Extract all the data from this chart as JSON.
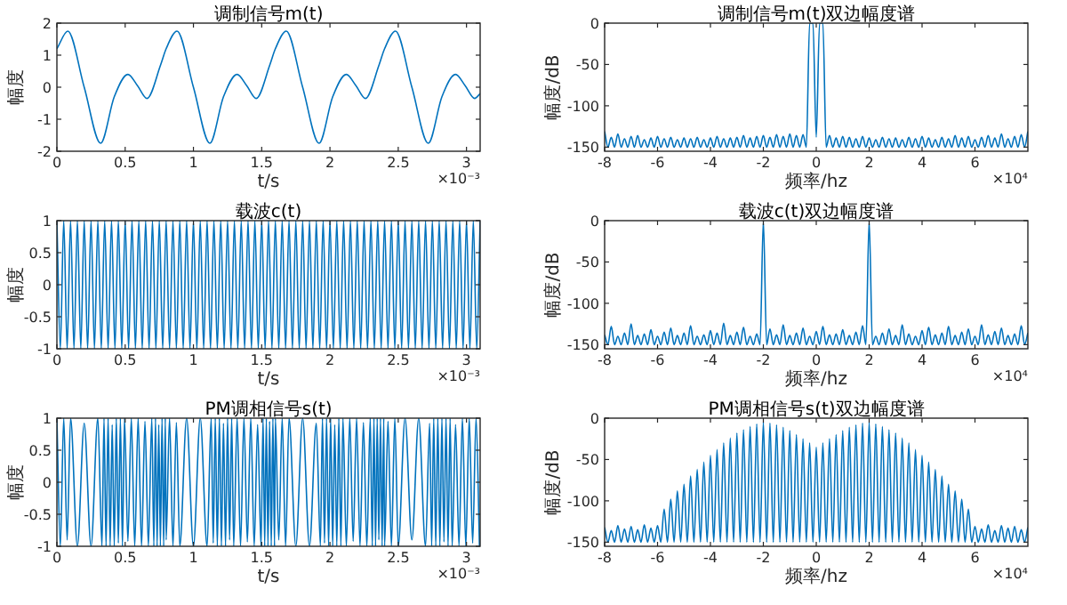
{
  "chart_data": [
    {
      "type": "line",
      "title": "调制信号m(t)",
      "xlabel": "t/s",
      "ylabel": "幅度",
      "annotations": [
        "×10⁻³"
      ],
      "xlim": [
        0,
        3.1
      ],
      "ylim": [
        -2,
        2
      ],
      "xticks": [
        0,
        0.5,
        1,
        1.5,
        2,
        2.5,
        3
      ],
      "yticks": [
        -2,
        -1,
        0,
        1,
        2
      ],
      "series": [
        {
          "color": "#0072bd",
          "x": [
            0,
            0.08,
            0.2,
            0.32,
            0.42,
            0.52,
            0.59,
            0.66,
            0.76,
            0.8,
            0.88,
            1.0,
            1.12,
            1.22,
            1.32,
            1.39,
            1.46,
            1.56,
            1.6,
            1.68,
            1.8,
            1.92,
            2.02,
            2.12,
            2.19,
            2.26,
            2.36,
            2.4,
            2.48,
            2.6,
            2.72,
            2.82,
            2.92,
            2.99,
            3.06,
            3.1
          ],
          "values": [
            1.2,
            1.75,
            0,
            -1.75,
            -0.3,
            0.4,
            0.05,
            -0.35,
            0.7,
            1.2,
            1.75,
            0,
            -1.75,
            -0.3,
            0.4,
            0.05,
            -0.35,
            0.7,
            1.2,
            1.75,
            0,
            -1.75,
            -0.3,
            0.4,
            0.05,
            -0.35,
            0.7,
            1.2,
            1.75,
            0,
            -1.75,
            -0.3,
            0.4,
            0.05,
            -0.35,
            -0.2
          ]
        }
      ]
    },
    {
      "type": "line",
      "title": "调制信号m(t)双边幅度谱",
      "xlabel": "频率/hz",
      "ylabel": "幅度/dB",
      "annotations": [
        "×10⁴"
      ],
      "xlim": [
        -8,
        8
      ],
      "ylim": [
        -155,
        0
      ],
      "xticks": [
        -8,
        -6,
        -4,
        -2,
        0,
        2,
        4,
        6
      ],
      "yticks": [
        -150,
        -100,
        -50,
        0
      ],
      "x": [
        -8,
        -7.875,
        -7.75,
        -7.625,
        -7.5,
        -7.375,
        -7.25,
        -7.125,
        -7,
        -6.875,
        -6.75,
        -6.625,
        -6.5,
        -6.375,
        -6.25,
        -6.125,
        -6,
        -5.875,
        -5.75,
        -5.625,
        -5.5,
        -5.375,
        -5.25,
        -5.125,
        -5,
        -4.875,
        -4.75,
        -4.625,
        -4.5,
        -4.375,
        -4.25,
        -4.125,
        -4,
        -3.875,
        -3.75,
        -3.625,
        -3.5,
        -3.375,
        -3.25,
        -3.125,
        -3,
        -2.875,
        -2.75,
        -2.625,
        -2.5,
        -2.375,
        -2.25,
        -2.125,
        -2,
        -1.875,
        -1.75,
        -1.625,
        -1.5,
        -1.375,
        -1.25,
        -1.125,
        -1,
        -0.875,
        -0.75,
        -0.625,
        -0.5,
        -0.375,
        -0.25,
        -0.125,
        0,
        0.125,
        0.25,
        0.375,
        0.5,
        0.625,
        0.75,
        0.875,
        1,
        1.125,
        1.25,
        1.375,
        1.5,
        1.625,
        1.75,
        1.875,
        2,
        2.125,
        2.25,
        2.375,
        2.5,
        2.625,
        2.75,
        2.875,
        3,
        3.125,
        3.25,
        3.375,
        3.5,
        3.625,
        3.75,
        3.875,
        4,
        4.125,
        4.25,
        4.375,
        4.5,
        4.625,
        4.75,
        4.875,
        5,
        5.125,
        5.25,
        5.375,
        5.5,
        5.625,
        5.75,
        5.875,
        6,
        6.125,
        6.25,
        6.375,
        6.5,
        6.625,
        6.75,
        6.875,
        7,
        7.125,
        7.25,
        7.375,
        7.5,
        7.625,
        7.75,
        7.875,
        8
      ],
      "series": [
        {
          "color": "#0072bd",
          "values": [
            -131,
            -150,
            -138,
            -150,
            -134,
            -150,
            -140,
            -150,
            -137,
            -150,
            -136,
            -150,
            -141,
            -150,
            -139,
            -150,
            -137,
            -150,
            -140,
            -150,
            -138,
            -150,
            -141,
            -150,
            -139,
            -150,
            -140,
            -150,
            -138,
            -150,
            -141,
            -150,
            -139,
            -150,
            -137,
            -150,
            -140,
            -150,
            -139,
            -150,
            -138,
            -150,
            -136,
            -150,
            -139,
            -150,
            -137,
            -150,
            -136,
            -150,
            -138,
            -150,
            -135,
            -150,
            -137,
            -150,
            -134,
            -150,
            -136,
            -150,
            -135,
            -150,
            0,
            0,
            -138,
            0,
            0,
            -150,
            -136,
            -150,
            -139,
            -150,
            -137,
            -150,
            -138,
            -150,
            -140,
            -150,
            -137,
            -150,
            -139,
            -150,
            -141,
            -150,
            -138,
            -150,
            -140,
            -150,
            -139,
            -150,
            -141,
            -150,
            -138,
            -150,
            -140,
            -150,
            -137,
            -150,
            -139,
            -150,
            -141,
            -150,
            -138,
            -150,
            -140,
            -150,
            -136,
            -150,
            -139,
            -150,
            -137,
            -150,
            -141,
            -150,
            -138,
            -150,
            -136,
            -150,
            -139,
            -150,
            -134,
            -150,
            -140,
            -150,
            -137,
            -150,
            -135,
            -150,
            -131
          ]
        }
      ]
    },
    {
      "type": "line",
      "title": "载波c(t)",
      "xlabel": "t/s",
      "ylabel": "幅度",
      "annotations": [
        "×10⁻³"
      ],
      "xlim": [
        0,
        3.1
      ],
      "ylim": [
        -1,
        1
      ],
      "xticks": [
        0,
        0.5,
        1,
        1.5,
        2,
        2.5,
        3
      ],
      "yticks": [
        -1,
        -0.5,
        0,
        0.5,
        1
      ],
      "series": [
        {
          "color": "#0072bd",
          "x": [
            0,
            0.025,
            0.05,
            0.075,
            0.1,
            0.125,
            0.15,
            0.175,
            0.2,
            0.225,
            0.25,
            0.275,
            0.3,
            0.325,
            0.35,
            0.375,
            0.4,
            0.425,
            0.45,
            0.475,
            0.5,
            0.525,
            0.55,
            0.575,
            0.6,
            0.625,
            0.65,
            0.675,
            0.7,
            0.725,
            0.75,
            0.775,
            0.8,
            0.825,
            0.85,
            0.875,
            0.9,
            0.925,
            0.95,
            0.975,
            1,
            1.025,
            1.05,
            1.075,
            1.1,
            1.125,
            1.15,
            1.175,
            1.2,
            1.225,
            1.25,
            1.275,
            1.3,
            1.325,
            1.35,
            1.375,
            1.4,
            1.425,
            1.45,
            1.475,
            1.5,
            1.525,
            1.55,
            1.575,
            1.6,
            1.625,
            1.65,
            1.675,
            1.7,
            1.725,
            1.75,
            1.775,
            1.8,
            1.825,
            1.85,
            1.875,
            1.9,
            1.925,
            1.95,
            1.975,
            2,
            2.025,
            2.05,
            2.075,
            2.1,
            2.125,
            2.15,
            2.175,
            2.2,
            2.225,
            2.25,
            2.275,
            2.3,
            2.325,
            2.35,
            2.375,
            2.4,
            2.425,
            2.45,
            2.475,
            2.5,
            2.525,
            2.55,
            2.575,
            2.6,
            2.625,
            2.65,
            2.675,
            2.7,
            2.725,
            2.75,
            2.775,
            2.8,
            2.825,
            2.85,
            2.875,
            2.9,
            2.925,
            2.95,
            2.975,
            3,
            3.025,
            3.05,
            3.075,
            3.1
          ],
          "values": [
            1,
            -1,
            1,
            -1,
            1,
            -1,
            1,
            -1,
            1,
            -1,
            1,
            -1,
            1,
            -1,
            1,
            -1,
            1,
            -1,
            1,
            -1,
            1,
            -1,
            1,
            -1,
            1,
            -1,
            1,
            -1,
            1,
            -1,
            1,
            -1,
            1,
            -1,
            1,
            -1,
            1,
            -1,
            1,
            -1,
            1,
            -1,
            1,
            -1,
            1,
            -1,
            1,
            -1,
            1,
            -1,
            1,
            -1,
            1,
            -1,
            1,
            -1,
            1,
            -1,
            1,
            -1,
            1,
            -1,
            1,
            -1,
            1,
            -1,
            1,
            -1,
            1,
            -1,
            1,
            -1,
            1,
            -1,
            1,
            -1,
            1,
            -1,
            1,
            -1,
            1,
            -1,
            1,
            -1,
            1,
            -1,
            1,
            -1,
            1,
            -1,
            1,
            -1,
            1,
            -1,
            1,
            -1,
            1,
            -1,
            1,
            -1,
            1,
            -1,
            1,
            -1,
            1,
            -1,
            1,
            -1,
            1,
            -1,
            1,
            -1,
            1,
            -1,
            1,
            -1,
            1,
            -1,
            1,
            -1,
            1,
            -1,
            1,
            -1,
            1
          ]
        }
      ]
    },
    {
      "type": "line",
      "title": "载波c(t)双边幅度谱",
      "xlabel": "频率/hz",
      "ylabel": "幅度/dB",
      "annotations": [
        "×10⁴"
      ],
      "xlim": [
        -8,
        8
      ],
      "ylim": [
        -155,
        0
      ],
      "xticks": [
        -8,
        -6,
        -4,
        -2,
        0,
        2,
        4,
        6
      ],
      "yticks": [
        -150,
        -100,
        -50,
        0
      ],
      "x": [
        -8,
        -7.875,
        -7.75,
        -7.625,
        -7.5,
        -7.375,
        -7.25,
        -7.125,
        -7,
        -6.875,
        -6.75,
        -6.625,
        -6.5,
        -6.375,
        -6.25,
        -6.125,
        -6,
        -5.875,
        -5.75,
        -5.625,
        -5.5,
        -5.375,
        -5.25,
        -5.125,
        -5,
        -4.875,
        -4.75,
        -4.625,
        -4.5,
        -4.375,
        -4.25,
        -4.125,
        -4,
        -3.875,
        -3.75,
        -3.625,
        -3.5,
        -3.375,
        -3.25,
        -3.125,
        -3,
        -2.875,
        -2.75,
        -2.625,
        -2.5,
        -2.375,
        -2.25,
        -2.125,
        -2,
        -1.875,
        -1.75,
        -1.625,
        -1.5,
        -1.375,
        -1.25,
        -1.125,
        -1,
        -0.875,
        -0.75,
        -0.625,
        -0.5,
        -0.375,
        -0.25,
        -0.125,
        0,
        0.125,
        0.25,
        0.375,
        0.5,
        0.625,
        0.75,
        0.875,
        1,
        1.125,
        1.25,
        1.375,
        1.5,
        1.625,
        1.75,
        1.875,
        2,
        2.125,
        2.25,
        2.375,
        2.5,
        2.625,
        2.75,
        2.875,
        3,
        3.125,
        3.25,
        3.375,
        3.5,
        3.625,
        3.75,
        3.875,
        4,
        4.125,
        4.25,
        4.375,
        4.5,
        4.625,
        4.75,
        4.875,
        5,
        5.125,
        5.25,
        5.375,
        5.5,
        5.625,
        5.75,
        5.875,
        6,
        6.125,
        6.25,
        6.375,
        6.5,
        6.625,
        6.75,
        6.875,
        7,
        7.125,
        7.25,
        7.375,
        7.5,
        7.625,
        7.75,
        7.875,
        8
      ],
      "series": [
        {
          "color": "#0072bd",
          "values": [
            -138,
            -150,
            -128,
            -150,
            -140,
            -150,
            -136,
            -150,
            -125,
            -150,
            -139,
            -150,
            -137,
            -150,
            -132,
            -150,
            -140,
            -150,
            -135,
            -150,
            -130,
            -150,
            -139,
            -150,
            -136,
            -150,
            -127,
            -150,
            -140,
            -150,
            -138,
            -150,
            -133,
            -150,
            -136,
            -150,
            -124,
            -150,
            -139,
            -150,
            -135,
            -150,
            -129,
            -150,
            -140,
            -150,
            -137,
            -150,
            0,
            -150,
            -131,
            -150,
            -138,
            -150,
            -126,
            -150,
            -139,
            -150,
            -136,
            -150,
            -130,
            -150,
            -140,
            -150,
            -134,
            -150,
            -128,
            -150,
            -138,
            -150,
            -137,
            -150,
            -132,
            -150,
            -139,
            -150,
            -135,
            -150,
            -127,
            -150,
            0,
            -150,
            -140,
            -150,
            -136,
            -150,
            -131,
            -150,
            -139,
            -150,
            -126,
            -150,
            -137,
            -150,
            -140,
            -150,
            -133,
            -150,
            -129,
            -150,
            -138,
            -150,
            -136,
            -150,
            -128,
            -150,
            -139,
            -150,
            -135,
            -150,
            -131,
            -150,
            -140,
            -150,
            -126,
            -150,
            -138,
            -150,
            -134,
            -150,
            -130,
            -150,
            -139,
            -150,
            -137,
            -150,
            -127,
            -150,
            -136
          ]
        }
      ]
    },
    {
      "type": "line",
      "title": "PM调相信号s(t)",
      "xlabel": "t/s",
      "ylabel": "幅度",
      "annotations": [
        "×10⁻³"
      ],
      "xlim": [
        0,
        3.1
      ],
      "ylim": [
        -1,
        1
      ],
      "xticks": [
        0,
        0.5,
        1,
        1.5,
        2,
        2.5,
        3
      ],
      "yticks": [
        -1,
        -0.5,
        0,
        0.5,
        1
      ],
      "series": [
        {
          "color": "#0072bd",
          "x": [
            0,
            0.025,
            0.05,
            0.075,
            0.1,
            0.15,
            0.2,
            0.25,
            0.3,
            0.33,
            0.345,
            0.36,
            0.375,
            0.39,
            0.405,
            0.42,
            0.435,
            0.45,
            0.465,
            0.48,
            0.495,
            0.52,
            0.545,
            0.57,
            0.595,
            0.62,
            0.645,
            0.67,
            0.695,
            0.71,
            0.722,
            0.734,
            0.746,
            0.758,
            0.77,
            0.782,
            0.794,
            0.8,
            0.825,
            0.85,
            0.875,
            0.9,
            0.95,
            1.0,
            1.05,
            1.1,
            1.13,
            1.145,
            1.16,
            1.175,
            1.19,
            1.205,
            1.22,
            1.235,
            1.25,
            1.265,
            1.28,
            1.295,
            1.32,
            1.345,
            1.37,
            1.395,
            1.42,
            1.445,
            1.47,
            1.495,
            1.51,
            1.522,
            1.534,
            1.546,
            1.558,
            1.57,
            1.582,
            1.594,
            1.6,
            1.625,
            1.65,
            1.675,
            1.7,
            1.75,
            1.8,
            1.85,
            1.9,
            1.93,
            1.945,
            1.96,
            1.975,
            1.99,
            2.005,
            2.02,
            2.035,
            2.05,
            2.065,
            2.08,
            2.095,
            2.12,
            2.145,
            2.17,
            2.195,
            2.22,
            2.245,
            2.27,
            2.295,
            2.31,
            2.322,
            2.334,
            2.346,
            2.358,
            2.37,
            2.382,
            2.394,
            2.4,
            2.425,
            2.45,
            2.475,
            2.5,
            2.55,
            2.6,
            2.65,
            2.7,
            2.73,
            2.745,
            2.76,
            2.775,
            2.79,
            2.805,
            2.82,
            2.835,
            2.85,
            2.865,
            2.88,
            2.895,
            2.92,
            2.945,
            2.97,
            2.995,
            3.02,
            3.045,
            3.07,
            3.095
          ],
          "values": [
            1,
            -1,
            1,
            -0.9,
            1,
            -1,
            0.92,
            -1,
            1,
            -1,
            1,
            -1,
            1,
            -1,
            0.9,
            -1,
            1,
            -0.95,
            1,
            -1,
            1,
            -0.92,
            1,
            -1,
            1,
            -1,
            0.95,
            -1,
            1,
            -1,
            1,
            -1,
            0.9,
            -1,
            1,
            -1,
            1,
            -0.9,
            1,
            -1,
            0.93,
            -1,
            1,
            -1,
            1,
            -1,
            1,
            -0.95,
            1,
            -1,
            1,
            -1,
            0.92,
            -1,
            1,
            -0.9,
            1,
            -1,
            1,
            -1,
            1,
            -0.93,
            1,
            -1,
            0.9,
            -1,
            1,
            -1,
            1,
            -1,
            0.95,
            -1,
            1,
            -1,
            1,
            -0.9,
            1,
            -1,
            1,
            -1,
            1,
            -1,
            0.92,
            -1,
            1,
            -0.95,
            1,
            -1,
            1,
            -1,
            0.9,
            -1,
            1,
            -1,
            1,
            -1,
            1,
            -0.92,
            1,
            -1,
            0.93,
            -1,
            1,
            -1,
            1,
            -1,
            1,
            -0.9,
            1,
            -1,
            1,
            -1,
            0.95,
            -1,
            1,
            -1,
            1,
            -0.9,
            1,
            -1,
            0.92,
            -1,
            1,
            -1,
            1,
            -1,
            1,
            -0.93,
            1,
            -1,
            1,
            -1,
            0.9,
            -1,
            1,
            -1,
            1,
            -0.95,
            1,
            -1
          ]
        }
      ]
    },
    {
      "type": "line",
      "title": "PM调相信号s(t)双边幅度谱",
      "xlabel": "频率/hz",
      "ylabel": "幅度/dB",
      "annotations": [
        "×10⁴"
      ],
      "xlim": [
        -8,
        8
      ],
      "ylim": [
        -155,
        0
      ],
      "xticks": [
        -8,
        -6,
        -4,
        -2,
        0,
        2,
        4,
        6
      ],
      "yticks": [
        -150,
        -100,
        -50,
        0
      ],
      "x": [
        -8,
        -7.875,
        -7.75,
        -7.625,
        -7.5,
        -7.375,
        -7.25,
        -7.125,
        -7,
        -6.875,
        -6.75,
        -6.625,
        -6.5,
        -6.375,
        -6.25,
        -6.125,
        -6,
        -5.875,
        -5.75,
        -5.625,
        -5.5,
        -5.375,
        -5.25,
        -5.125,
        -5,
        -4.875,
        -4.75,
        -4.625,
        -4.5,
        -4.375,
        -4.25,
        -4.125,
        -4,
        -3.875,
        -3.75,
        -3.625,
        -3.5,
        -3.375,
        -3.25,
        -3.125,
        -3,
        -2.875,
        -2.75,
        -2.625,
        -2.5,
        -2.375,
        -2.25,
        -2.125,
        -2,
        -1.875,
        -1.75,
        -1.625,
        -1.5,
        -1.375,
        -1.25,
        -1.125,
        -1,
        -0.875,
        -0.75,
        -0.625,
        -0.5,
        -0.375,
        -0.25,
        -0.125,
        0,
        0.125,
        0.25,
        0.375,
        0.5,
        0.625,
        0.75,
        0.875,
        1,
        1.125,
        1.25,
        1.375,
        1.5,
        1.625,
        1.75,
        1.875,
        2,
        2.125,
        2.25,
        2.375,
        2.5,
        2.625,
        2.75,
        2.875,
        3,
        3.125,
        3.25,
        3.375,
        3.5,
        3.625,
        3.75,
        3.875,
        4,
        4.125,
        4.25,
        4.375,
        4.5,
        4.625,
        4.75,
        4.875,
        5,
        5.125,
        5.25,
        5.375,
        5.5,
        5.625,
        5.75,
        5.875,
        6,
        6.125,
        6.25,
        6.375,
        6.5,
        6.625,
        6.75,
        6.875,
        7,
        7.125,
        7.25,
        7.375,
        7.5,
        7.625,
        7.75,
        7.875,
        8
      ],
      "series": [
        {
          "color": "#0072bd",
          "values": [
            -132,
            -150,
            -136,
            -150,
            -130,
            -150,
            -134,
            -150,
            -131,
            -150,
            -135,
            -150,
            -129,
            -150,
            -133,
            -150,
            -130,
            -150,
            -110,
            -150,
            -98,
            -150,
            -88,
            -150,
            -80,
            -150,
            -70,
            -150,
            -62,
            -150,
            -53,
            -150,
            -45,
            -150,
            -38,
            -150,
            -30,
            -150,
            -24,
            -150,
            -18,
            -150,
            -14,
            -150,
            -10,
            -150,
            -7,
            -150,
            -5,
            -150,
            -6,
            -150,
            -8,
            -150,
            -11,
            -150,
            -15,
            -150,
            -20,
            -150,
            -25,
            -150,
            -30,
            -150,
            -35,
            -150,
            -30,
            -150,
            -25,
            -150,
            -20,
            -150,
            -15,
            -150,
            -11,
            -150,
            -8,
            -150,
            -6,
            -150,
            -5,
            -150,
            -7,
            -150,
            -10,
            -150,
            -14,
            -150,
            -18,
            -150,
            -24,
            -150,
            -30,
            -150,
            -38,
            -150,
            -45,
            -150,
            -53,
            -150,
            -62,
            -150,
            -70,
            -150,
            -80,
            -150,
            -88,
            -150,
            -98,
            -150,
            -110,
            -150,
            -131,
            -150,
            -134,
            -150,
            -129,
            -150,
            -136,
            -150,
            -130,
            -150,
            -133,
            -150,
            -131,
            -150,
            -135,
            -150,
            -132
          ]
        }
      ]
    }
  ]
}
